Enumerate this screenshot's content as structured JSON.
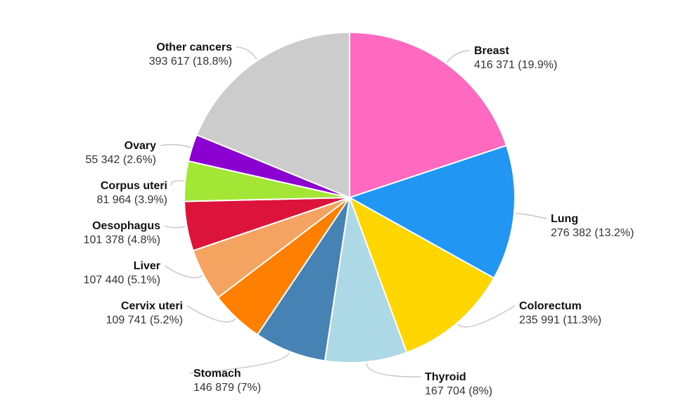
{
  "chart_data": {
    "type": "pie",
    "start_angle_deg": 0,
    "direction": "clockwise",
    "legend": "none",
    "slices": [
      {
        "name": "Breast",
        "value": 416371,
        "value_label": "416 371 (19.9%)",
        "color": "#FF69C0"
      },
      {
        "name": "Lung",
        "value": 276382,
        "value_label": "276 382 (13.2%)",
        "color": "#2196F3"
      },
      {
        "name": "Colorectum",
        "value": 235991,
        "value_label": "235 991 (11.3%)",
        "color": "#FFD600"
      },
      {
        "name": "Thyroid",
        "value": 167704,
        "value_label": "167 704 (8%)",
        "color": "#ADD8E6"
      },
      {
        "name": "Stomach",
        "value": 146879,
        "value_label": "146 879 (7%)",
        "color": "#4682B4"
      },
      {
        "name": "Cervix uteri",
        "value": 109741,
        "value_label": "109 741 (5.2%)",
        "color": "#FF7F00"
      },
      {
        "name": "Liver",
        "value": 107440,
        "value_label": "107 440 (5.1%)",
        "color": "#F4A460"
      },
      {
        "name": "Oesophagus",
        "value": 101378,
        "value_label": "101 378 (4.8%)",
        "color": "#DC143C"
      },
      {
        "name": "Corpus uteri",
        "value": 81964,
        "value_label": "81 964 (3.9%)",
        "color": "#A3E635"
      },
      {
        "name": "Ovary",
        "value": 55342,
        "value_label": "55 342 (2.6%)",
        "color": "#8B00D0"
      },
      {
        "name": "Other cancers",
        "value": 393617,
        "value_label": "393 617 (18.8%)",
        "color": "#CCCCCC"
      }
    ]
  }
}
